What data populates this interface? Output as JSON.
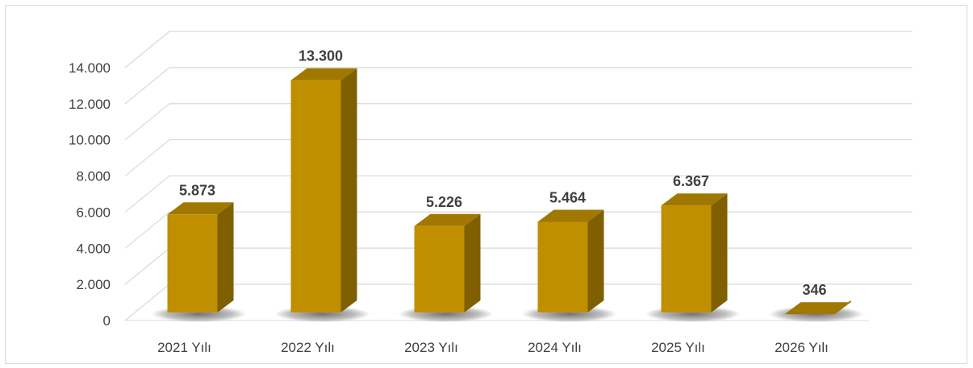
{
  "chart_data": {
    "type": "bar",
    "categories": [
      "2021 Yılı",
      "2022 Yılı",
      "2023 Yılı",
      "2024 Yılı",
      "2025 Yılı",
      "2026 Yılı"
    ],
    "values": [
      5873,
      13300,
      5226,
      5464,
      6367,
      346
    ],
    "data_labels": [
      "5.873",
      "13.300",
      "5.226",
      "5.464",
      "6.367",
      "346"
    ],
    "y_ticks": [
      0,
      2000,
      4000,
      6000,
      8000,
      10000,
      12000,
      14000
    ],
    "y_tick_labels": [
      "0",
      "2.000",
      "4.000",
      "6.000",
      "8.000",
      "10.000",
      "12.000",
      "14.000"
    ],
    "ylim": [
      0,
      14000
    ],
    "grid": true,
    "style": "3d-column",
    "colors": {
      "bar_front": "#bf8f00",
      "bar_side": "#7f5f00",
      "bar_top": "#a07800",
      "grid": "#d9d9d9",
      "text": "#404040"
    }
  }
}
